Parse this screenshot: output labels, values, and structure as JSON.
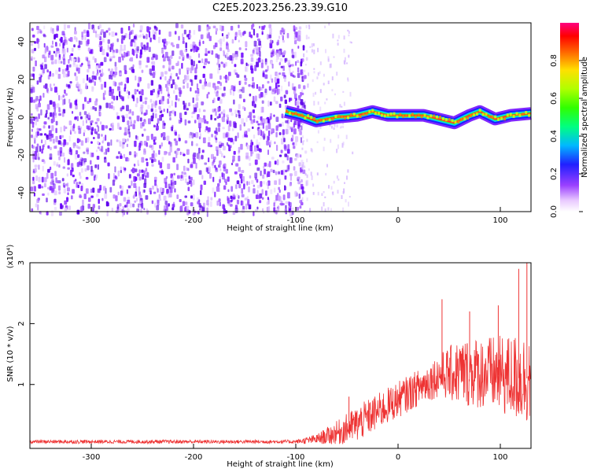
{
  "chart_data": [
    {
      "type": "heatmap",
      "title": "C2E5.2023.256.23.39.G10",
      "xlabel": "Height of straight line (km)",
      "ylabel": "Frequency (Hz)",
      "xlim": [
        -360,
        130
      ],
      "ylim": [
        -50,
        50
      ],
      "x_ticks": [
        -300,
        -200,
        -100,
        0,
        100
      ],
      "y_ticks": [
        -40,
        -20,
        0,
        20,
        40
      ],
      "colorbar": {
        "label": "Normalized spectral amplitude",
        "range": [
          0,
          1
        ],
        "ticks": [
          "0.0",
          "0.2",
          "0.4",
          "0.6",
          "0.8"
        ]
      },
      "ridge": [
        {
          "x": -110,
          "y": 3
        },
        {
          "x": -95,
          "y": 1
        },
        {
          "x": -80,
          "y": -2
        },
        {
          "x": -60,
          "y": 0
        },
        {
          "x": -40,
          "y": 1
        },
        {
          "x": -25,
          "y": 3
        },
        {
          "x": -10,
          "y": 1
        },
        {
          "x": 0,
          "y": 1
        },
        {
          "x": 25,
          "y": 1
        },
        {
          "x": 40,
          "y": -1
        },
        {
          "x": 55,
          "y": -3
        },
        {
          "x": 70,
          "y": 1
        },
        {
          "x": 80,
          "y": 3
        },
        {
          "x": 95,
          "y": -1
        },
        {
          "x": 110,
          "y": 1
        },
        {
          "x": 130,
          "y": 2
        }
      ]
    },
    {
      "type": "line",
      "xlabel": "Height of straight line (km)",
      "ylabel": "SNR (10 * v/v)",
      "y_multiplier": "(x10⁴)",
      "xlim": [
        -360,
        130
      ],
      "ylim": [
        0,
        3
      ],
      "x_ticks": [
        -300,
        -200,
        -100,
        0,
        100
      ],
      "y_ticks": [
        1,
        2,
        3
      ],
      "line_color": "#ee3333",
      "envelope": [
        {
          "x": -360,
          "base": 0.06,
          "noise": 0.03
        },
        {
          "x": -100,
          "base": 0.06,
          "noise": 0.03
        },
        {
          "x": -80,
          "base": 0.1,
          "noise": 0.08
        },
        {
          "x": -60,
          "base": 0.2,
          "noise": 0.2
        },
        {
          "x": -40,
          "base": 0.35,
          "noise": 0.3
        },
        {
          "x": -20,
          "base": 0.55,
          "noise": 0.3
        },
        {
          "x": 0,
          "base": 0.75,
          "noise": 0.3
        },
        {
          "x": 20,
          "base": 0.95,
          "noise": 0.3
        },
        {
          "x": 40,
          "base": 1.15,
          "noise": 0.35
        },
        {
          "x": 60,
          "base": 1.2,
          "noise": 0.55
        },
        {
          "x": 80,
          "base": 1.2,
          "noise": 0.6
        },
        {
          "x": 100,
          "base": 1.15,
          "noise": 0.65
        },
        {
          "x": 120,
          "base": 1.1,
          "noise": 0.75
        },
        {
          "x": 130,
          "base": 1.1,
          "noise": 0.75
        }
      ],
      "peaks": [
        {
          "x": 43,
          "y": 2.4
        },
        {
          "x": 118,
          "y": 2.9
        },
        {
          "x": 126,
          "y": 3.0
        },
        {
          "x": 70,
          "y": 2.2
        },
        {
          "x": 98,
          "y": 2.3
        },
        {
          "x": -48,
          "y": 0.8
        }
      ]
    }
  ]
}
